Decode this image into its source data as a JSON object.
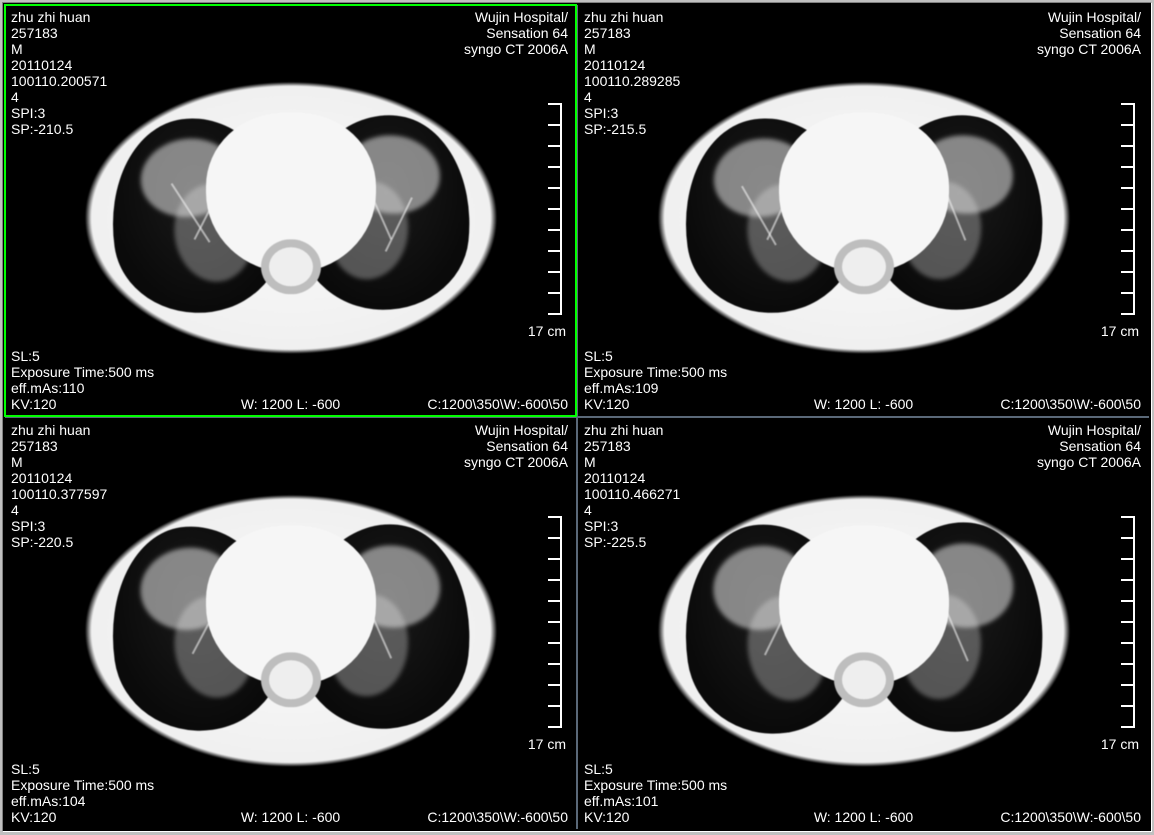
{
  "viewer": {
    "background_color": "#000000",
    "frame_color": "#c0c0c0",
    "grid_gap_color": "#5a6878",
    "selection_color": "#00ff00",
    "text_color": "#ffffff",
    "font_size_pt": 11,
    "layout": "2x2",
    "ruler": {
      "ticks": 11,
      "label": "17 cm",
      "color": "#ffffff"
    }
  },
  "common": {
    "patient_name": "zhu zhi huan",
    "patient_id": "257183",
    "sex": "M",
    "study_date": "20110124",
    "series_no": "4",
    "spi": "SPI:3",
    "sl": "SL:5",
    "exposure": "Exposure Time:500 ms",
    "kv": "KV:120",
    "hospital": "Wujin Hospital/",
    "scanner": "Sensation 64",
    "software": "syngo CT 2006A",
    "window": "W: 1200 L: -600",
    "window_full": "C:1200\\350\\W:-600\\50"
  },
  "panels": [
    {
      "selected": true,
      "acq_time": "100110.200571",
      "sp": "SP:-210.5",
      "eff_mas": "eff.mAs:110"
    },
    {
      "selected": false,
      "acq_time": "100110.289285",
      "sp": "SP:-215.5",
      "eff_mas": "eff.mAs:109"
    },
    {
      "selected": false,
      "acq_time": "100110.377597",
      "sp": "SP:-220.5",
      "eff_mas": "eff.mAs:104"
    },
    {
      "selected": false,
      "acq_time": "100110.466271",
      "sp": "SP:-225.5",
      "eff_mas": "eff.mAs:101"
    }
  ]
}
